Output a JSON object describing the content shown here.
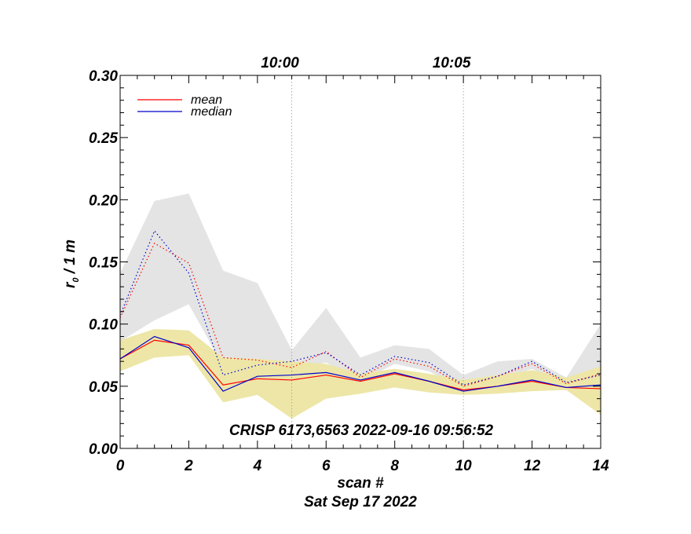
{
  "chart_data": {
    "type": "line",
    "title": "",
    "xlabel": "scan #",
    "date_label": "Sat Sep 17 2022",
    "ylabel_main": "r",
    "ylabel_sub": "0",
    "ylabel_rest": " / 1 m",
    "annotation": "CRISP 6173,6563 2022-09-16 09:56:52",
    "xlim": [
      0,
      14
    ],
    "ylim": [
      0,
      0.3
    ],
    "x_ticks": [
      0,
      2,
      4,
      6,
      8,
      10,
      12,
      14
    ],
    "x_tick_labels": [
      "0",
      "2",
      "4",
      "6",
      "8",
      "10",
      "12",
      "14"
    ],
    "y_ticks": [
      0,
      0.05,
      0.1,
      0.15,
      0.2,
      0.25,
      0.3
    ],
    "y_tick_labels": [
      "0.00",
      "0.05",
      "0.10",
      "0.15",
      "0.20",
      "0.25",
      "0.30"
    ],
    "time_markers": [
      {
        "x": 5,
        "label": "10:00"
      },
      {
        "x": 10,
        "label": "10:05"
      }
    ],
    "x": [
      0,
      1,
      2,
      3,
      4,
      5,
      6,
      7,
      8,
      9,
      10,
      11,
      12,
      13,
      14
    ],
    "legend": [
      {
        "name": "mean",
        "color": "#ff0000"
      },
      {
        "name": "median",
        "color": "#0000cc"
      }
    ],
    "series": [
      {
        "name": "mean",
        "style": "solid",
        "color": "#ff0000",
        "values": [
          0.072,
          0.087,
          0.083,
          0.051,
          0.056,
          0.055,
          0.059,
          0.054,
          0.06,
          0.054,
          0.047,
          0.05,
          0.054,
          0.049,
          0.048
        ]
      },
      {
        "name": "median",
        "style": "solid",
        "color": "#0000cc",
        "values": [
          0.072,
          0.09,
          0.081,
          0.046,
          0.058,
          0.059,
          0.061,
          0.055,
          0.061,
          0.054,
          0.046,
          0.05,
          0.055,
          0.049,
          0.051
        ]
      },
      {
        "name": "mean (upper)",
        "style": "dotted",
        "color": "#ff0000",
        "values": [
          0.105,
          0.165,
          0.149,
          0.073,
          0.071,
          0.065,
          0.078,
          0.057,
          0.072,
          0.066,
          0.05,
          0.058,
          0.068,
          0.052,
          0.06
        ]
      },
      {
        "name": "median (upper)",
        "style": "dotted",
        "color": "#0000cc",
        "values": [
          0.107,
          0.175,
          0.141,
          0.059,
          0.067,
          0.07,
          0.077,
          0.059,
          0.074,
          0.069,
          0.051,
          0.058,
          0.07,
          0.053,
          0.059
        ]
      }
    ],
    "bands": [
      {
        "name": "gray-range",
        "color": "#e4e4e4",
        "upper": [
          0.141,
          0.199,
          0.205,
          0.143,
          0.133,
          0.079,
          0.113,
          0.073,
          0.083,
          0.08,
          0.059,
          0.07,
          0.072,
          0.057,
          0.1
        ],
        "lower": [
          0.086,
          0.103,
          0.116,
          0.066,
          0.068,
          0.064,
          0.069,
          0.054,
          0.068,
          0.062,
          0.047,
          0.055,
          0.064,
          0.05,
          0.05
        ]
      },
      {
        "name": "yellow-range",
        "color": "#ede6a7",
        "upper": [
          0.087,
          0.096,
          0.095,
          0.073,
          0.072,
          0.07,
          0.068,
          0.06,
          0.064,
          0.06,
          0.055,
          0.059,
          0.063,
          0.057,
          0.066
        ],
        "lower": [
          0.062,
          0.073,
          0.075,
          0.037,
          0.043,
          0.024,
          0.04,
          0.044,
          0.049,
          0.045,
          0.043,
          0.044,
          0.046,
          0.047,
          0.027
        ]
      }
    ]
  }
}
